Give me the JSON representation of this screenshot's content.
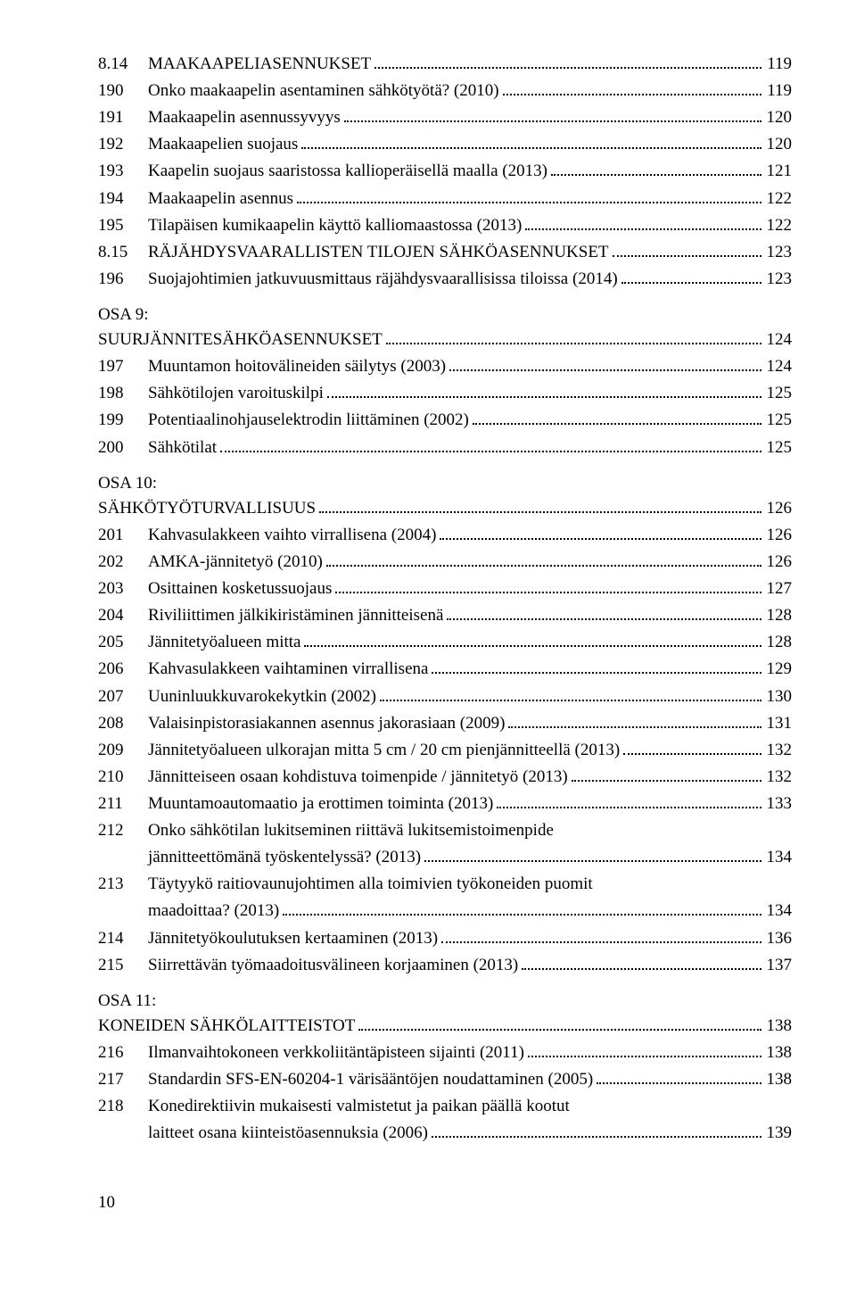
{
  "section_8_14": {
    "num": "8.14",
    "title": "MAAKAAPELIASENNUKSET",
    "page": "119"
  },
  "entries_a": [
    {
      "num": "190",
      "title": "Onko maakaapelin asentaminen sähkötyötä? (2010)",
      "page": "119"
    },
    {
      "num": "191",
      "title": "Maakaapelin asennussyvyys",
      "page": "120"
    },
    {
      "num": "192",
      "title": "Maakaapelien suojaus",
      "page": "120"
    },
    {
      "num": "193",
      "title": "Kaapelin suojaus saaristossa kallioperäisellä maalla (2013)",
      "page": "121"
    },
    {
      "num": "194",
      "title": "Maakaapelin asennus",
      "page": "122"
    },
    {
      "num": "195",
      "title": "Tilapäisen kumikaapelin käyttö kalliomaastossa (2013)",
      "page": "122"
    }
  ],
  "section_8_15": {
    "num": "8.15",
    "title": "RÄJÄHDYSVAARALLISTEN TILOJEN SÄHKÖASENNUKSET",
    "page": "123"
  },
  "entries_b": [
    {
      "num": "196",
      "title": "Suojajohtimien jatkuvuusmittaus räjähdysvaarallisissa tiloissa (2014)",
      "page": "123"
    }
  ],
  "osa9": {
    "label": "OSA 9:",
    "title": "SUURJÄNNITESÄHKÖASENNUKSET",
    "page": "124"
  },
  "entries_c": [
    {
      "num": "197",
      "title": "Muuntamon hoitovälineiden säilytys (2003)",
      "page": "124"
    },
    {
      "num": "198",
      "title": "Sähkötilojen varoituskilpi",
      "page": "125"
    },
    {
      "num": "199",
      "title": "Potentiaalinohjauselektrodin liittäminen (2002)",
      "page": "125"
    },
    {
      "num": "200",
      "title": "Sähkötilat",
      "page": "125"
    }
  ],
  "osa10": {
    "label": "OSA 10:",
    "title": "SÄHKÖTYÖTURVALLISUUS",
    "page": "126"
  },
  "entries_d": [
    {
      "num": "201",
      "title": "Kahvasulakkeen vaihto virrallisena (2004)",
      "page": "126"
    },
    {
      "num": "202",
      "title": "AMKA-jännitetyö (2010)",
      "page": "126"
    },
    {
      "num": "203",
      "title": "Osittainen kosketussuojaus",
      "page": "127"
    },
    {
      "num": "204",
      "title": "Riviliittimen jälkikiristäminen jännitteisenä",
      "page": "128"
    },
    {
      "num": "205",
      "title": "Jännitetyöalueen mitta",
      "page": "128"
    },
    {
      "num": "206",
      "title": "Kahvasulakkeen vaihtaminen virrallisena",
      "page": "129"
    },
    {
      "num": "207",
      "title": "Uuninluukkuvarokekytkin (2002)",
      "page": "130"
    },
    {
      "num": "208",
      "title": "Valaisinpistorasiakannen asennus jakorasiaan (2009)",
      "page": "131"
    },
    {
      "num": "209",
      "title": "Jännitetyöalueen ulkorajan mitta 5 cm / 20 cm pienjännitteellä (2013)",
      "page": "132"
    },
    {
      "num": "210",
      "title": "Jännitteiseen osaan kohdistuva toimenpide / jännitetyö (2013)",
      "page": "132"
    },
    {
      "num": "211",
      "title": "Muuntamoautomaatio ja erottimen toiminta (2013)",
      "page": "133"
    }
  ],
  "entry_212": {
    "num": "212",
    "line1": "Onko sähkötilan lukitseminen riittävä lukitsemistoimenpide",
    "line2": "jännitteettömänä työskentelyssä? (2013)",
    "page": "134"
  },
  "entry_213": {
    "num": "213",
    "line1": "Täytyykö raitiovaunujohtimen alla toimivien työkoneiden puomit",
    "line2": "maadoittaa? (2013)",
    "page": "134"
  },
  "entries_e": [
    {
      "num": "214",
      "title": "Jännitetyökoulutuksen kertaaminen (2013)",
      "page": "136"
    },
    {
      "num": "215",
      "title": "Siirrettävän työmaadoitusvälineen korjaaminen (2013)",
      "page": "137"
    }
  ],
  "osa11": {
    "label": "OSA 11:",
    "title": "KONEIDEN SÄHKÖLAITTEISTOT",
    "page": "138"
  },
  "entries_f": [
    {
      "num": "216",
      "title": "Ilmanvaihtokoneen verkkoliitäntäpisteen sijainti (2011)",
      "page": "138"
    },
    {
      "num": "217",
      "title": "Standardin SFS-EN-60204-1 värisääntöjen noudattaminen  (2005)",
      "page": "138"
    }
  ],
  "entry_218": {
    "num": "218",
    "line1": "Konedirektiivin mukaisesti valmistetut ja paikan päällä kootut",
    "line2": "laitteet osana kiinteistöasennuksia (2006)",
    "page": "139"
  },
  "footer_page": "10"
}
